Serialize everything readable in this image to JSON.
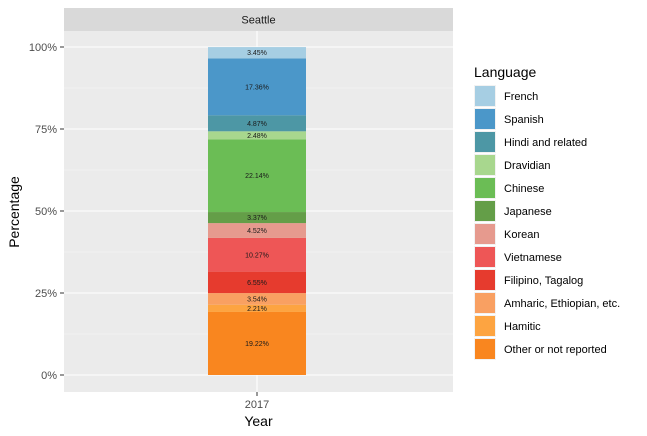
{
  "chart_data": {
    "type": "bar",
    "stacked": true,
    "facet": "Seattle",
    "categories": [
      "2017"
    ],
    "xlabel": "Year",
    "ylabel": "Percentage",
    "ylim": [
      0,
      100
    ],
    "y_ticks": [
      0,
      25,
      50,
      75,
      100
    ],
    "y_tick_labels": [
      "0%",
      "25%",
      "50%",
      "75%",
      "100%"
    ],
    "grid": true,
    "legend": {
      "title": "Language",
      "position": "right"
    },
    "series": [
      {
        "name": "French",
        "values": [
          3.45
        ],
        "label": "3.45%",
        "color": "#a6cee3"
      },
      {
        "name": "Spanish",
        "values": [
          17.36
        ],
        "label": "17.36%",
        "color": "#4b97c9"
      },
      {
        "name": "Hindi and related",
        "values": [
          4.87
        ],
        "label": "4.87%",
        "color": "#4d97a5"
      },
      {
        "name": "Dravidian",
        "values": [
          2.48
        ],
        "label": "2.48%",
        "color": "#a8d78e"
      },
      {
        "name": "Chinese",
        "values": [
          22.14
        ],
        "label": "22.14%",
        "color": "#6bbd55"
      },
      {
        "name": "Japanese",
        "values": [
          3.37
        ],
        "label": "3.37%",
        "color": "#649e48"
      },
      {
        "name": "Korean",
        "values": [
          4.52
        ],
        "label": "4.52%",
        "color": "#e69a8e"
      },
      {
        "name": "Vietnamese",
        "values": [
          10.27
        ],
        "label": "10.27%",
        "color": "#ee5656"
      },
      {
        "name": "Filipino, Tagalog",
        "values": [
          6.55
        ],
        "label": "6.55%",
        "color": "#e63b2e"
      },
      {
        "name": "Amharic, Ethiopian, etc.",
        "values": [
          3.54
        ],
        "label": "3.54%",
        "color": "#f9a062"
      },
      {
        "name": "Hamitic",
        "values": [
          2.21
        ],
        "label": "2.21%",
        "color": "#fda441"
      },
      {
        "name": "Other or not reported",
        "values": [
          19.22
        ],
        "label": "19.22%",
        "color": "#f9861f"
      }
    ]
  }
}
